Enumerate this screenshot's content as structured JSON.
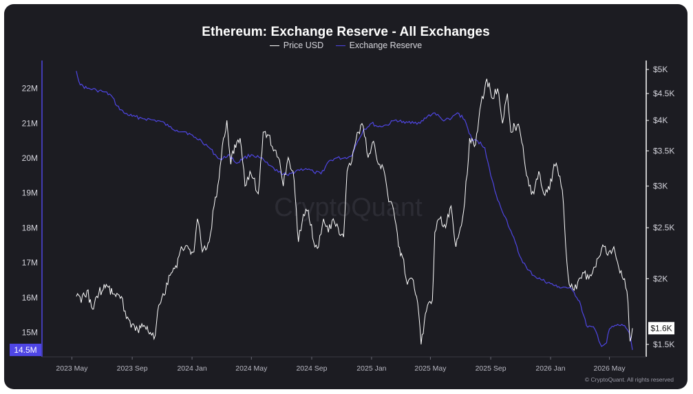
{
  "chart_data": {
    "type": "line",
    "title": "Ethereum: Exchange Reserve - All Exchanges",
    "legend_position": "top-center",
    "grid": false,
    "x_ticks": [
      "2023 May",
      "2023 Sep",
      "2024 Jan",
      "2024 May",
      "2024 Sep",
      "2025 Jan",
      "2025 May",
      "2025 Sep",
      "2026 Jan",
      "2026 May"
    ],
    "x_range": [
      "2023-03-01",
      "2026-07-15"
    ],
    "y_left": {
      "range": [
        14300000,
        22800000
      ],
      "ticks": [
        15000000,
        16000000,
        17000000,
        18000000,
        19000000,
        20000000,
        21000000,
        22000000
      ],
      "tick_labels": [
        "15M",
        "16M",
        "17M",
        "18M",
        "19M",
        "20M",
        "21M",
        "22M"
      ],
      "current_label": "14.5M",
      "current_value": 14500000
    },
    "y_right": {
      "scale": "log",
      "range": [
        1420,
        5200
      ],
      "ticks": [
        1500,
        2000,
        2500,
        3000,
        3500,
        4000,
        4500,
        5000
      ],
      "tick_labels": [
        "$1.5K",
        "$2K",
        "$2.5K",
        "$3K",
        "$3.5K",
        "$4K",
        "$4.5K",
        "$5K"
      ],
      "current_label": "$1.6K",
      "current_value": 1610
    },
    "series": [
      {
        "name": "Price USD",
        "axis": "right",
        "color": "#ffffff",
        "points": [
          [
            "2023-05-10",
            1850
          ],
          [
            "2023-05-20",
            1800
          ],
          [
            "2023-06-01",
            1900
          ],
          [
            "2023-06-12",
            1750
          ],
          [
            "2023-06-25",
            1880
          ],
          [
            "2023-07-10",
            1950
          ],
          [
            "2023-07-25",
            1870
          ],
          [
            "2023-08-10",
            1850
          ],
          [
            "2023-08-20",
            1680
          ],
          [
            "2023-09-01",
            1640
          ],
          [
            "2023-09-12",
            1600
          ],
          [
            "2023-09-25",
            1630
          ],
          [
            "2023-10-08",
            1580
          ],
          [
            "2023-10-18",
            1560
          ],
          [
            "2023-10-25",
            1780
          ],
          [
            "2023-11-05",
            1860
          ],
          [
            "2023-11-15",
            2030
          ],
          [
            "2023-12-01",
            2100
          ],
          [
            "2023-12-10",
            2300
          ],
          [
            "2023-12-25",
            2280
          ],
          [
            "2024-01-05",
            2250
          ],
          [
            "2024-01-12",
            2600
          ],
          [
            "2024-01-22",
            2250
          ],
          [
            "2024-02-05",
            2350
          ],
          [
            "2024-02-15",
            2750
          ],
          [
            "2024-02-25",
            3100
          ],
          [
            "2024-03-05",
            3700
          ],
          [
            "2024-03-12",
            4000
          ],
          [
            "2024-03-20",
            3300
          ],
          [
            "2024-03-28",
            3600
          ],
          [
            "2024-04-08",
            3700
          ],
          [
            "2024-04-18",
            3000
          ],
          [
            "2024-04-28",
            3200
          ],
          [
            "2024-05-05",
            3100
          ],
          [
            "2024-05-15",
            2900
          ],
          [
            "2024-05-25",
            3800
          ],
          [
            "2024-06-05",
            3750
          ],
          [
            "2024-06-15",
            3500
          ],
          [
            "2024-06-25",
            3400
          ],
          [
            "2024-07-05",
            3000
          ],
          [
            "2024-07-15",
            3400
          ],
          [
            "2024-07-25",
            3200
          ],
          [
            "2024-08-05",
            2350
          ],
          [
            "2024-08-15",
            2650
          ],
          [
            "2024-08-25",
            2700
          ],
          [
            "2024-09-05",
            2350
          ],
          [
            "2024-09-15",
            2300
          ],
          [
            "2024-09-25",
            2600
          ],
          [
            "2024-10-05",
            2450
          ],
          [
            "2024-10-15",
            2600
          ],
          [
            "2024-10-25",
            2500
          ],
          [
            "2024-11-05",
            2400
          ],
          [
            "2024-11-12",
            3200
          ],
          [
            "2024-11-22",
            3350
          ],
          [
            "2024-12-05",
            3800
          ],
          [
            "2024-12-15",
            3900
          ],
          [
            "2024-12-25",
            3400
          ],
          [
            "2025-01-05",
            3650
          ],
          [
            "2025-01-15",
            3300
          ],
          [
            "2025-01-25",
            3250
          ],
          [
            "2025-02-05",
            2800
          ],
          [
            "2025-02-15",
            2700
          ],
          [
            "2025-02-25",
            2300
          ],
          [
            "2025-03-05",
            2200
          ],
          [
            "2025-03-15",
            1950
          ],
          [
            "2025-03-25",
            2000
          ],
          [
            "2025-04-05",
            1800
          ],
          [
            "2025-04-12",
            1500
          ],
          [
            "2025-04-25",
            1780
          ],
          [
            "2025-05-05",
            1820
          ],
          [
            "2025-05-10",
            2450
          ],
          [
            "2025-05-20",
            2600
          ],
          [
            "2025-06-01",
            2500
          ],
          [
            "2025-06-12",
            2750
          ],
          [
            "2025-06-22",
            2300
          ],
          [
            "2025-07-01",
            2500
          ],
          [
            "2025-07-10",
            2800
          ],
          [
            "2025-07-20",
            3700
          ],
          [
            "2025-08-01",
            3600
          ],
          [
            "2025-08-12",
            4300
          ],
          [
            "2025-08-24",
            4800
          ],
          [
            "2025-09-05",
            4400
          ],
          [
            "2025-09-15",
            4600
          ],
          [
            "2025-09-25",
            3950
          ],
          [
            "2025-10-05",
            4500
          ],
          [
            "2025-10-12",
            3800
          ],
          [
            "2025-10-20",
            3900
          ],
          [
            "2025-10-30",
            3850
          ],
          [
            "2025-11-08",
            3400
          ],
          [
            "2025-11-18",
            3000
          ],
          [
            "2025-11-28",
            2900
          ],
          [
            "2025-12-08",
            3200
          ],
          [
            "2025-12-18",
            2900
          ],
          [
            "2025-12-30",
            2950
          ],
          [
            "2026-01-08",
            3300
          ],
          [
            "2026-01-15",
            3250
          ],
          [
            "2026-01-25",
            2950
          ],
          [
            "2026-02-01",
            2300
          ],
          [
            "2026-02-08",
            1950
          ],
          [
            "2026-02-18",
            1900
          ],
          [
            "2026-02-28",
            2000
          ],
          [
            "2026-03-10",
            2050
          ],
          [
            "2026-03-20",
            2000
          ],
          [
            "2026-03-30",
            2100
          ],
          [
            "2026-04-10",
            2200
          ],
          [
            "2026-04-20",
            2300
          ],
          [
            "2026-04-30",
            2250
          ],
          [
            "2026-05-10",
            2300
          ],
          [
            "2026-05-20",
            2100
          ],
          [
            "2026-06-01",
            2000
          ],
          [
            "2026-06-08",
            1800
          ],
          [
            "2026-06-12",
            1520
          ],
          [
            "2026-06-17",
            1610
          ]
        ]
      },
      {
        "name": "Exchange Reserve",
        "axis": "left",
        "color": "#4f46e5",
        "points": [
          [
            "2023-05-10",
            22500000
          ],
          [
            "2023-05-18",
            22100000
          ],
          [
            "2023-06-01",
            22000000
          ],
          [
            "2023-06-20",
            21950000
          ],
          [
            "2023-07-05",
            21900000
          ],
          [
            "2023-07-20",
            21800000
          ],
          [
            "2023-08-01",
            21500000
          ],
          [
            "2023-08-15",
            21300000
          ],
          [
            "2023-09-01",
            21200000
          ],
          [
            "2023-09-20",
            21150000
          ],
          [
            "2023-10-10",
            21100000
          ],
          [
            "2023-10-30",
            21050000
          ],
          [
            "2023-11-15",
            20900000
          ],
          [
            "2023-12-01",
            20800000
          ],
          [
            "2023-12-20",
            20750000
          ],
          [
            "2024-01-05",
            20600000
          ],
          [
            "2024-01-20",
            20500000
          ],
          [
            "2024-02-05",
            20300000
          ],
          [
            "2024-02-20",
            20050000
          ],
          [
            "2024-03-01",
            19950000
          ],
          [
            "2024-03-15",
            20100000
          ],
          [
            "2024-04-01",
            19850000
          ],
          [
            "2024-04-15",
            20000000
          ],
          [
            "2024-05-01",
            20100000
          ],
          [
            "2024-05-20",
            20000000
          ],
          [
            "2024-06-05",
            19800000
          ],
          [
            "2024-06-25",
            19600000
          ],
          [
            "2024-07-15",
            19500000
          ],
          [
            "2024-08-01",
            19650000
          ],
          [
            "2024-08-20",
            19700000
          ],
          [
            "2024-09-05",
            19600000
          ],
          [
            "2024-09-20",
            19550000
          ],
          [
            "2024-10-05",
            19900000
          ],
          [
            "2024-10-20",
            20000000
          ],
          [
            "2024-11-05",
            20000000
          ],
          [
            "2024-11-20",
            20050000
          ],
          [
            "2024-12-01",
            20400000
          ],
          [
            "2024-12-15",
            20800000
          ],
          [
            "2025-01-01",
            21000000
          ],
          [
            "2025-01-15",
            20900000
          ],
          [
            "2025-02-01",
            20950000
          ],
          [
            "2025-02-20",
            21100000
          ],
          [
            "2025-03-10",
            21000000
          ],
          [
            "2025-03-25",
            21050000
          ],
          [
            "2025-04-10",
            21000000
          ],
          [
            "2025-04-25",
            21200000
          ],
          [
            "2025-05-10",
            21300000
          ],
          [
            "2025-05-25",
            21100000
          ],
          [
            "2025-06-10",
            21100000
          ],
          [
            "2025-06-25",
            21300000
          ],
          [
            "2025-07-10",
            21100000
          ],
          [
            "2025-07-25",
            20500000
          ],
          [
            "2025-08-05",
            20500000
          ],
          [
            "2025-08-20",
            20300000
          ],
          [
            "2025-09-01",
            19500000
          ],
          [
            "2025-09-15",
            18800000
          ],
          [
            "2025-10-01",
            18300000
          ],
          [
            "2025-10-15",
            17800000
          ],
          [
            "2025-10-30",
            17200000
          ],
          [
            "2025-11-15",
            16800000
          ],
          [
            "2025-12-01",
            16600000
          ],
          [
            "2025-12-15",
            16500000
          ],
          [
            "2026-01-01",
            16400000
          ],
          [
            "2026-01-15",
            16300000
          ],
          [
            "2026-02-01",
            16300000
          ],
          [
            "2026-02-15",
            16200000
          ],
          [
            "2026-03-01",
            15900000
          ],
          [
            "2026-03-15",
            15200000
          ],
          [
            "2026-04-01",
            15100000
          ],
          [
            "2026-04-15",
            14600000
          ],
          [
            "2026-04-25",
            14700000
          ],
          [
            "2026-05-01",
            15100000
          ],
          [
            "2026-05-15",
            15200000
          ],
          [
            "2026-06-01",
            15200000
          ],
          [
            "2026-06-10",
            15000000
          ],
          [
            "2026-06-17",
            14500000
          ]
        ]
      }
    ],
    "watermark": "CryptoQuant",
    "credit": "© CryptoQuant. All rights reserved"
  }
}
